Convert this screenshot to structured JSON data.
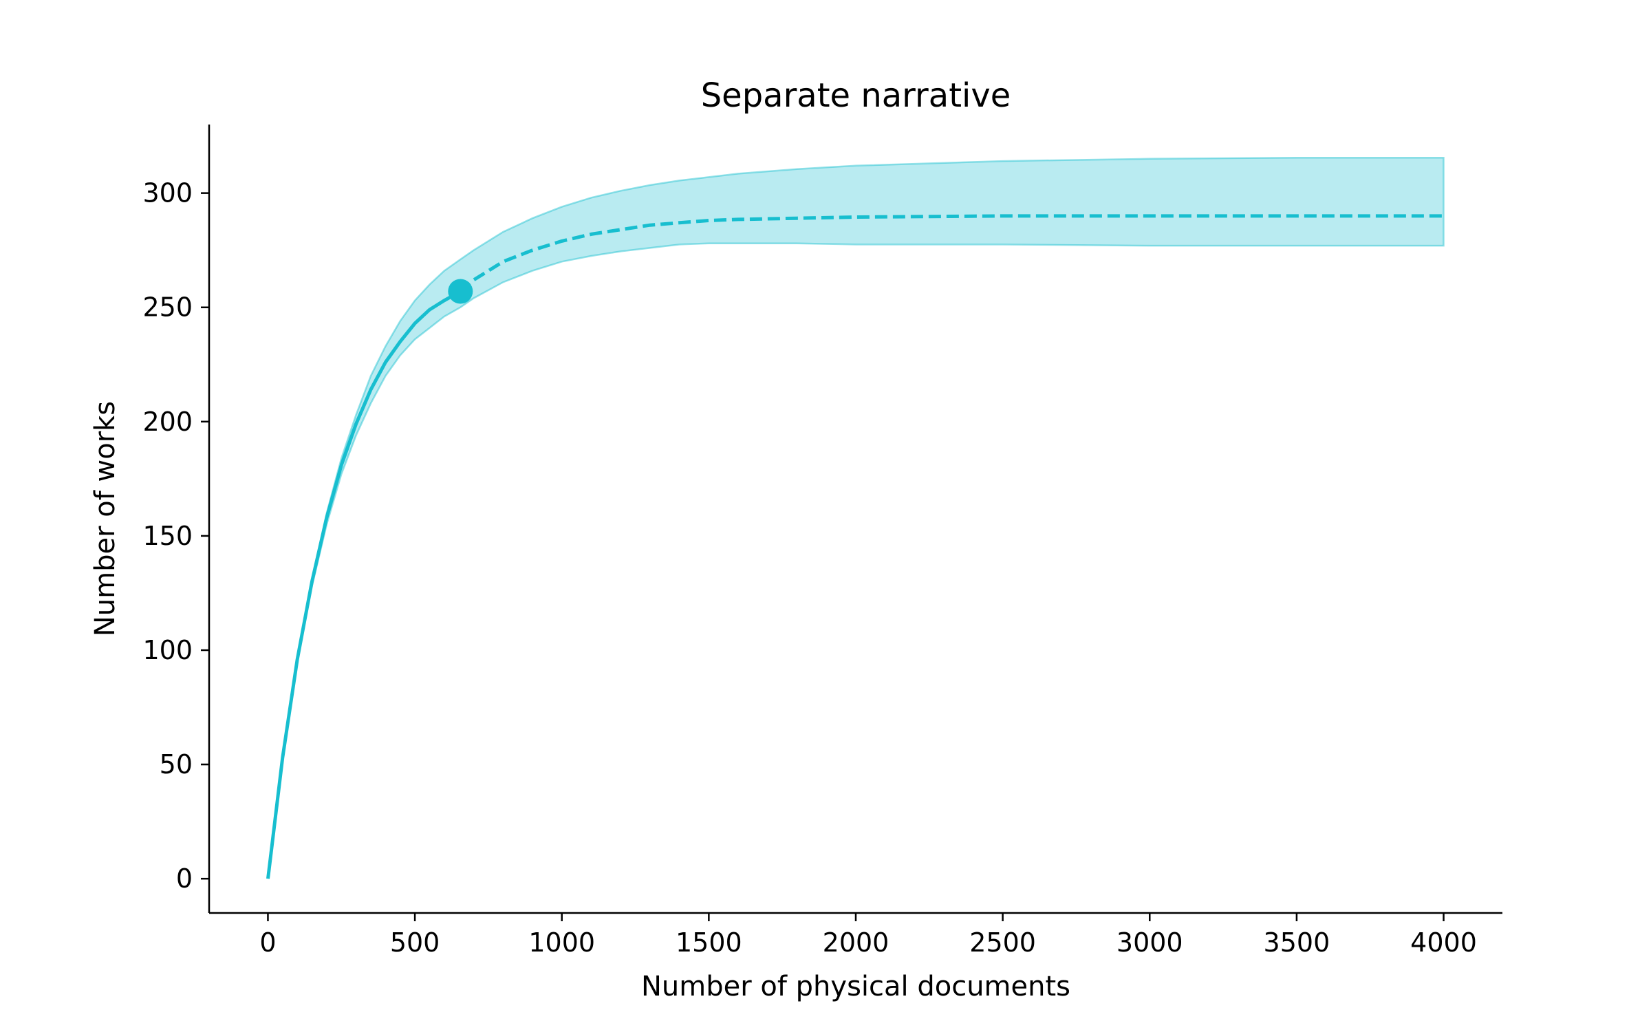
{
  "chart_data": {
    "type": "line",
    "title": "Separate narrative",
    "xlabel": "Number of physical documents",
    "ylabel": "Number of works",
    "xlim": [
      -200,
      4200
    ],
    "ylim": [
      -15,
      330
    ],
    "xticks": [
      0,
      500,
      1000,
      1500,
      2000,
      2500,
      3000,
      3500,
      4000
    ],
    "yticks": [
      0,
      50,
      100,
      150,
      200,
      250,
      300
    ],
    "grid": false,
    "legend": "none",
    "color": "#17becf",
    "series": [
      {
        "style": "solid",
        "x": [
          0,
          50,
          100,
          150,
          200,
          250,
          300,
          350,
          400,
          450,
          500,
          550,
          600,
          655
        ],
        "y": [
          0,
          53,
          96,
          130,
          158,
          181,
          199,
          214,
          226,
          235,
          243,
          249,
          253,
          257
        ]
      },
      {
        "style": "dashed",
        "x": [
          655,
          700,
          800,
          900,
          1000,
          1100,
          1200,
          1300,
          1400,
          1500,
          1600,
          1800,
          2000,
          2500,
          3000,
          3500,
          4000
        ],
        "y": [
          257,
          262,
          270,
          275,
          279,
          282,
          284,
          286,
          287,
          288,
          288.5,
          289,
          289.5,
          290,
          290,
          290,
          290
        ]
      }
    ],
    "band": {
      "x": [
        0,
        50,
        100,
        150,
        200,
        250,
        300,
        350,
        400,
        450,
        500,
        550,
        600,
        655,
        700,
        800,
        900,
        1000,
        1100,
        1200,
        1300,
        1400,
        1500,
        1600,
        1800,
        2000,
        2500,
        3000,
        3500,
        4000
      ],
      "upper": [
        0,
        53,
        96,
        131,
        160,
        184,
        203,
        220,
        233,
        244,
        253,
        260,
        266,
        271,
        275,
        283,
        289,
        294,
        298,
        301,
        303.5,
        305.5,
        307,
        308.5,
        310.5,
        312,
        314,
        315,
        315.5,
        315.5
      ],
      "lower": [
        0,
        53,
        95,
        128,
        155,
        177,
        194,
        208,
        220,
        229,
        236,
        241,
        246,
        250,
        254,
        261,
        266,
        270,
        272.5,
        274.5,
        276,
        277.5,
        278,
        278,
        278,
        277.5,
        277.5,
        277,
        277,
        277
      ]
    },
    "marker": {
      "x": 655,
      "y": 257
    }
  }
}
